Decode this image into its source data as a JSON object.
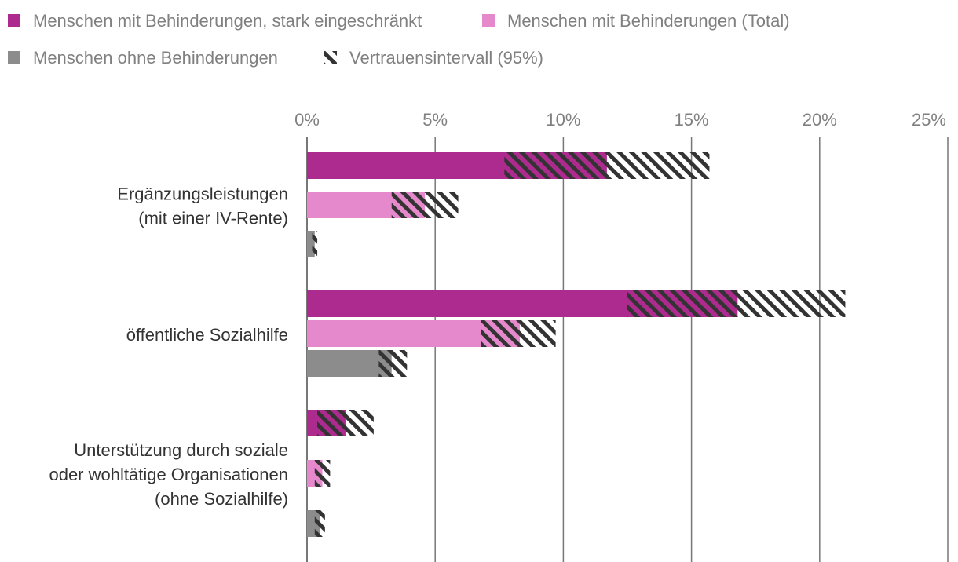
{
  "chart_data": {
    "type": "bar",
    "orientation": "horizontal",
    "title": "",
    "xlabel": "",
    "ylabel": "",
    "xlim": [
      0,
      25
    ],
    "x_ticks": [
      "0%",
      "5%",
      "10%",
      "15%",
      "20%",
      "25%"
    ],
    "x_tick_values": [
      0,
      5,
      10,
      15,
      20,
      25
    ],
    "grid": true,
    "legend_position": "top-left",
    "legend": [
      {
        "label": "Menschen mit Behinderungen, stark eingeschränkt",
        "kind": "solid",
        "color": "#ad2a8e"
      },
      {
        "label": "Menschen mit Behinderungen (Total)",
        "kind": "solid",
        "color": "#e589cc"
      },
      {
        "label": "Menschen ohne Behinderungen",
        "kind": "solid",
        "color": "#8c8c8c"
      },
      {
        "label": "Vertrauensintervall (95%)",
        "kind": "hatch",
        "color": "#333333"
      }
    ],
    "categories": [
      {
        "lines": [
          "Ergänzungsleistungen",
          "(mit einer IV-Rente)"
        ]
      },
      {
        "lines": [
          "öffentliche Sozialhilfe"
        ]
      },
      {
        "lines": [
          "Unterstützung durch soziale",
          "oder wohltätige Organisationen",
          "(ohne Sozialhilfe)"
        ]
      }
    ],
    "series": [
      {
        "name": "Menschen mit Behinderungen, stark eingeschränkt",
        "color": "#ad2a8e",
        "values": [
          11.7,
          16.8,
          1.5
        ],
        "ci_low": [
          7.7,
          12.5,
          0.4
        ],
        "ci_high": [
          15.7,
          21.0,
          2.6
        ]
      },
      {
        "name": "Menschen mit Behinderungen (Total)",
        "color": "#e589cc",
        "values": [
          4.6,
          8.3,
          0.6
        ],
        "ci_low": [
          3.3,
          6.8,
          0.3
        ],
        "ci_high": [
          5.9,
          9.7,
          0.9
        ]
      },
      {
        "name": "Menschen ohne Behinderungen",
        "color": "#8c8c8c",
        "values": [
          0.3,
          3.3,
          0.5
        ],
        "ci_low": [
          0.2,
          2.8,
          0.3
        ],
        "ci_high": [
          0.4,
          3.9,
          0.7
        ]
      }
    ]
  }
}
